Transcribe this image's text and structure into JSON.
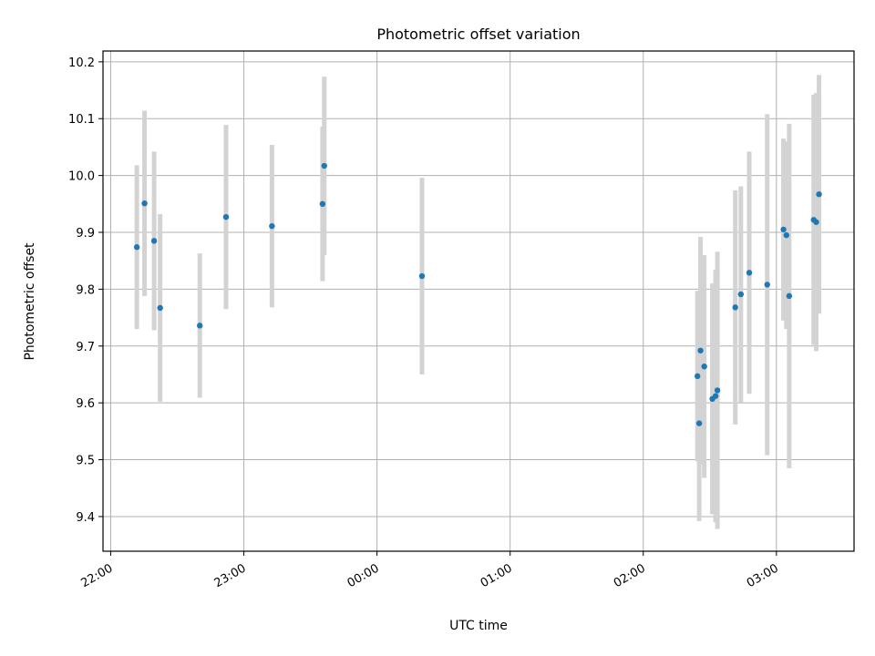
{
  "chart_data": {
    "type": "scatter",
    "title": "Photometric offset variation",
    "xlabel": "UTC time",
    "ylabel": "Photometric offset",
    "x_unit": "hours (UTC clock; values above 24 are after midnight of the next day)",
    "xlim": [
      21.942,
      27.583
    ],
    "ylim": [
      9.339,
      10.219
    ],
    "x_ticks": [
      {
        "value": 22,
        "label": "22:00"
      },
      {
        "value": 23,
        "label": "23:00"
      },
      {
        "value": 24,
        "label": "00:00"
      },
      {
        "value": 25,
        "label": "01:00"
      },
      {
        "value": 26,
        "label": "02:00"
      },
      {
        "value": 27,
        "label": "03:00"
      }
    ],
    "y_ticks": [
      {
        "value": 9.4,
        "label": "9.4"
      },
      {
        "value": 9.5,
        "label": "9.5"
      },
      {
        "value": 9.6,
        "label": "9.6"
      },
      {
        "value": 9.7,
        "label": "9.7"
      },
      {
        "value": 9.8,
        "label": "9.8"
      },
      {
        "value": 9.9,
        "label": "9.9"
      },
      {
        "value": 10.0,
        "label": "10.0"
      },
      {
        "value": 10.1,
        "label": "10.1"
      },
      {
        "value": 10.2,
        "label": "10.2"
      }
    ],
    "grid": true,
    "marker_color": "#1f77b4",
    "errorbar_color": "#d3d3d3",
    "points": [
      {
        "time": "22:12",
        "x": 22.196,
        "y": 9.874,
        "err": 0.144
      },
      {
        "time": "22:15",
        "x": 22.254,
        "y": 9.951,
        "err": 0.163
      },
      {
        "time": "22:19",
        "x": 22.326,
        "y": 9.885,
        "err": 0.157
      },
      {
        "time": "22:22",
        "x": 22.371,
        "y": 9.767,
        "err": 0.165
      },
      {
        "time": "22:40",
        "x": 22.669,
        "y": 9.736,
        "err": 0.127
      },
      {
        "time": "22:52",
        "x": 22.866,
        "y": 9.927,
        "err": 0.162
      },
      {
        "time": "23:12",
        "x": 23.211,
        "y": 9.911,
        "err": 0.143
      },
      {
        "time": "23:35",
        "x": 23.591,
        "y": 9.95,
        "err": 0.136
      },
      {
        "time": "23:36",
        "x": 23.604,
        "y": 10.017,
        "err": 0.157
      },
      {
        "time": "00:20",
        "x": 24.338,
        "y": 9.823,
        "err": 0.173
      },
      {
        "time": "02:25",
        "x": 26.407,
        "y": 9.647,
        "err": 0.15
      },
      {
        "time": "02:25",
        "x": 26.42,
        "y": 9.564,
        "err": 0.172
      },
      {
        "time": "02:26",
        "x": 26.43,
        "y": 9.692,
        "err": 0.2
      },
      {
        "time": "02:28",
        "x": 26.458,
        "y": 9.664,
        "err": 0.196
      },
      {
        "time": "02:31",
        "x": 26.519,
        "y": 9.607,
        "err": 0.203
      },
      {
        "time": "02:33",
        "x": 26.543,
        "y": 9.612,
        "err": 0.222
      },
      {
        "time": "02:34",
        "x": 26.557,
        "y": 9.622,
        "err": 0.244
      },
      {
        "time": "02:41",
        "x": 26.691,
        "y": 9.768,
        "err": 0.206
      },
      {
        "time": "02:44",
        "x": 26.733,
        "y": 9.791,
        "err": 0.19
      },
      {
        "time": "02:48",
        "x": 26.796,
        "y": 9.829,
        "err": 0.213
      },
      {
        "time": "02:56",
        "x": 26.931,
        "y": 9.808,
        "err": 0.3
      },
      {
        "time": "03:03",
        "x": 27.053,
        "y": 9.905,
        "err": 0.16
      },
      {
        "time": "03:04",
        "x": 27.075,
        "y": 9.895,
        "err": 0.165
      },
      {
        "time": "03:06",
        "x": 27.096,
        "y": 9.788,
        "err": 0.303
      },
      {
        "time": "03:17",
        "x": 27.28,
        "y": 9.922,
        "err": 0.22
      },
      {
        "time": "03:18",
        "x": 27.299,
        "y": 9.918,
        "err": 0.227
      },
      {
        "time": "03:19",
        "x": 27.32,
        "y": 9.967,
        "err": 0.21
      }
    ]
  }
}
